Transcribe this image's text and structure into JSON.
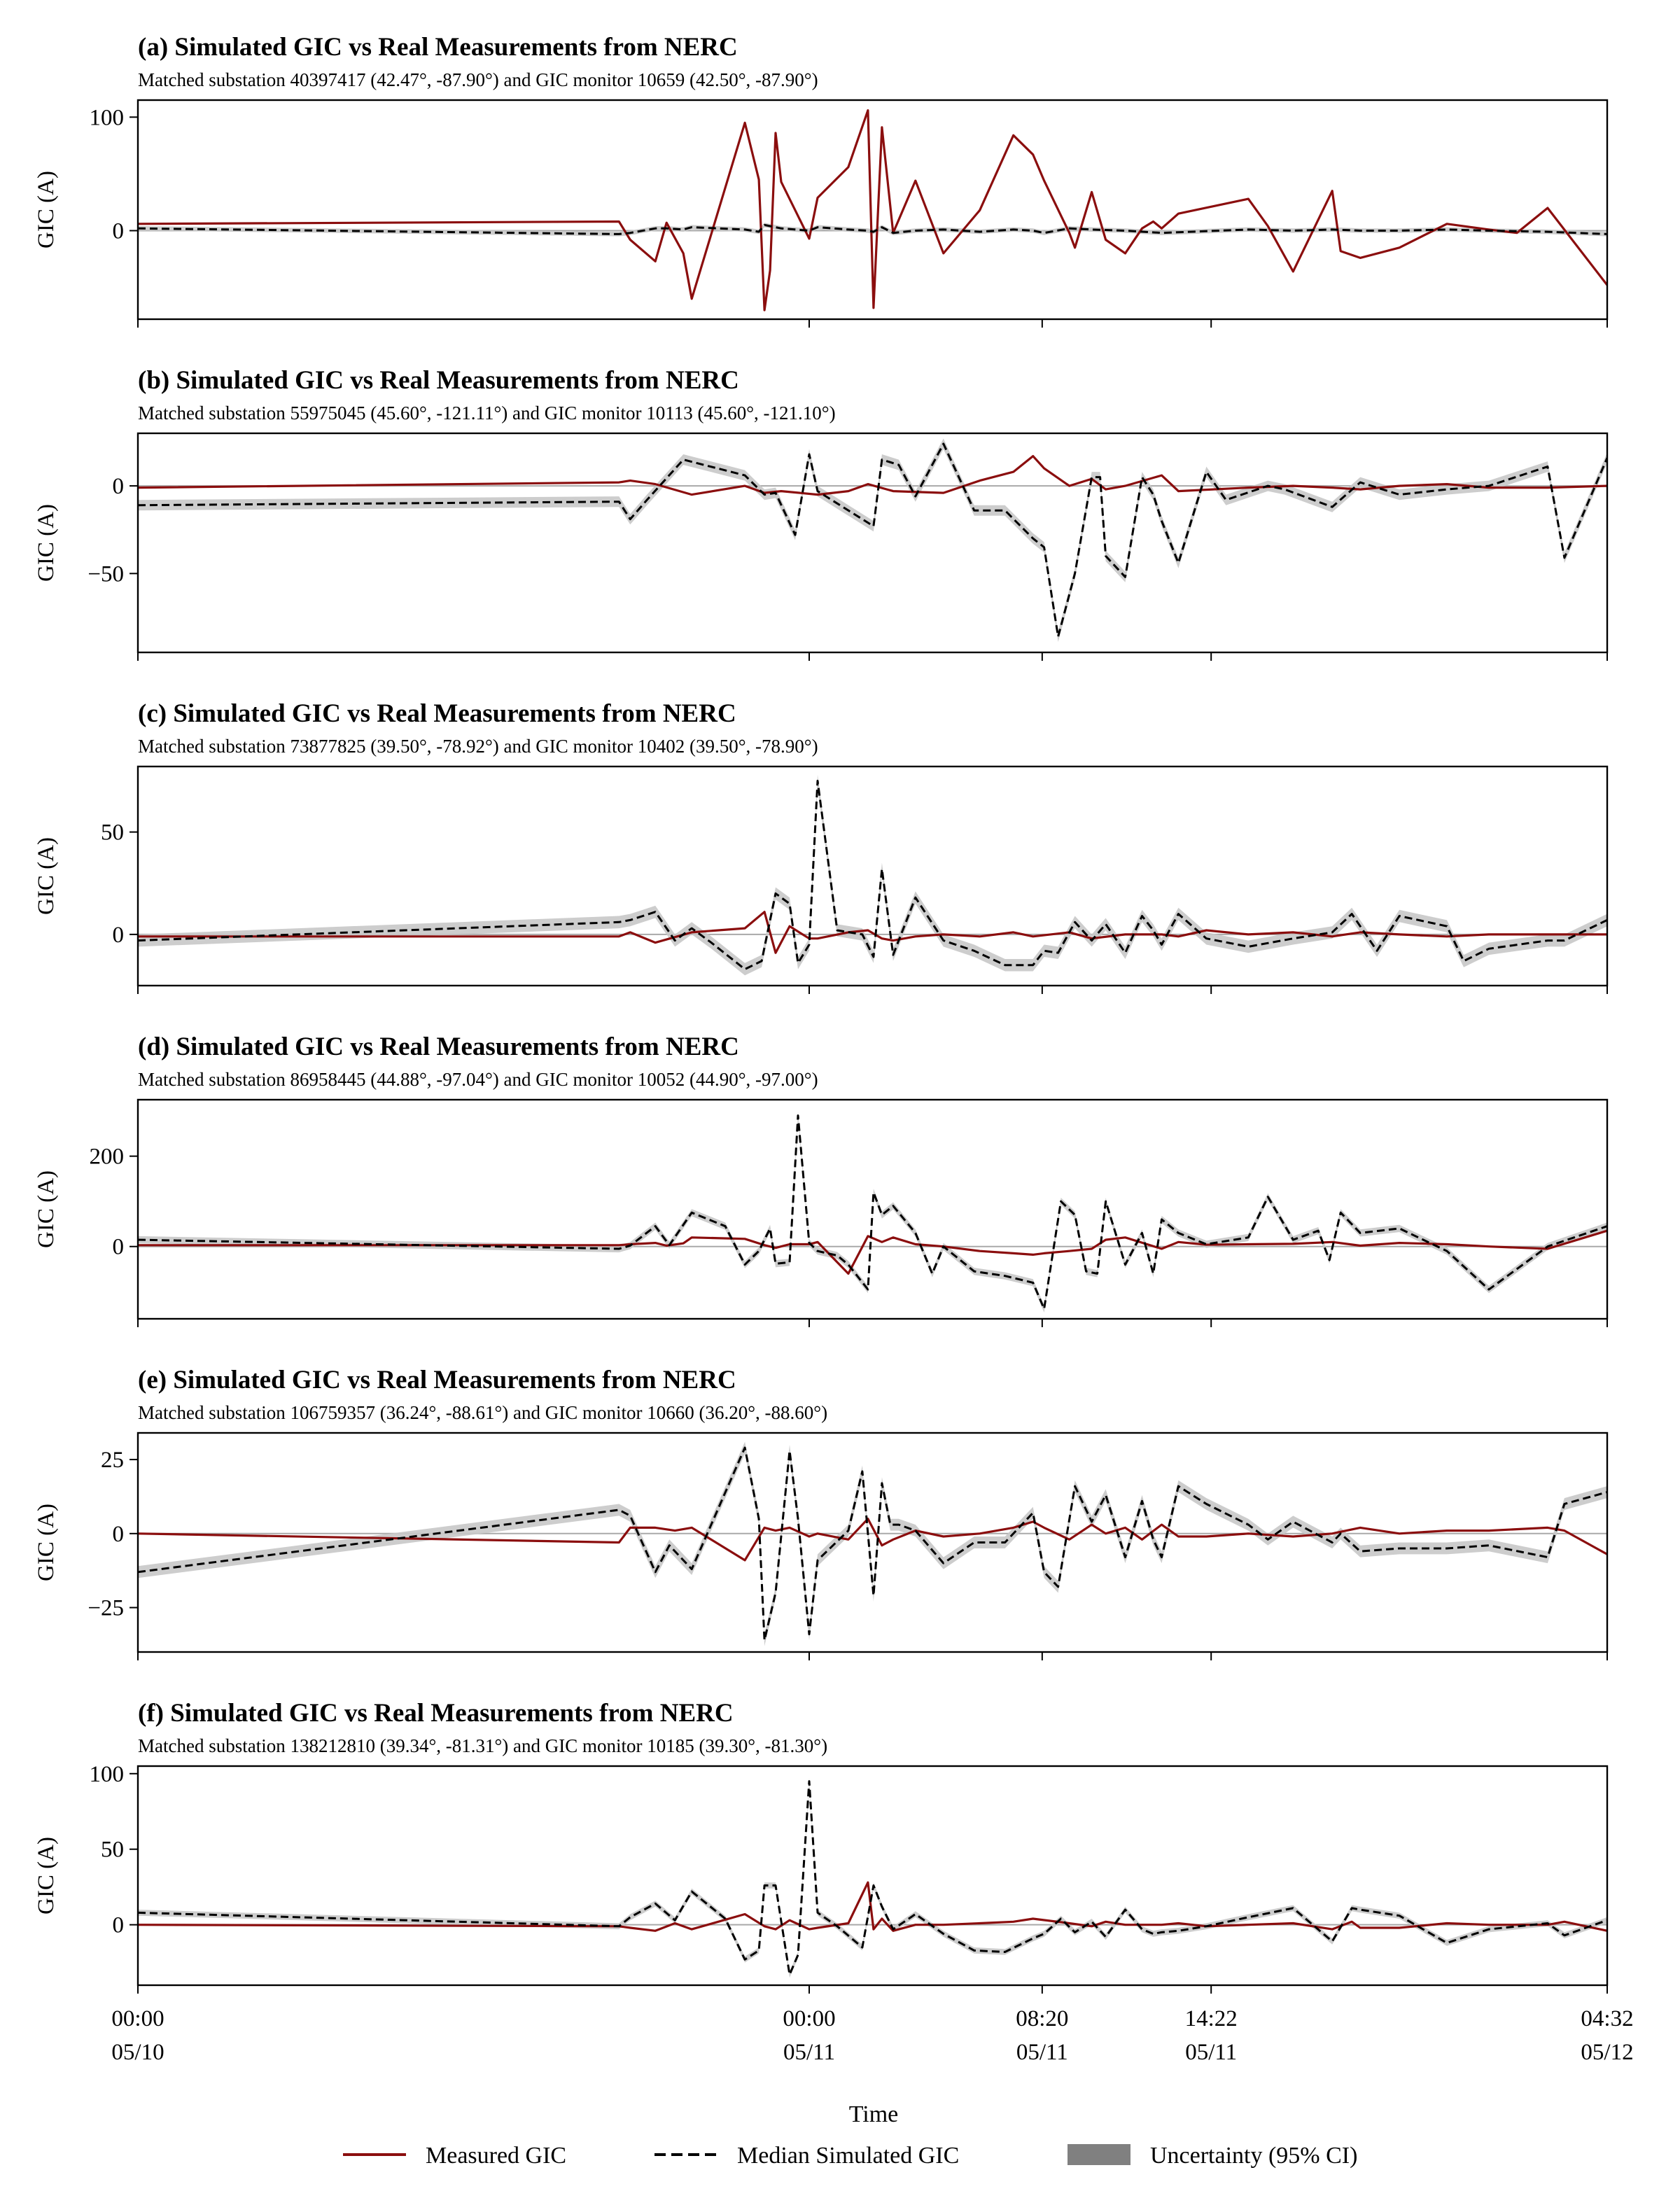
{
  "figure": {
    "x_axis_label": "Time",
    "x_ticks": [
      {
        "t": 0,
        "line1": "00:00",
        "line2": "05/10"
      },
      {
        "t": 24,
        "line1": "00:00",
        "line2": "05/11"
      },
      {
        "t": 32.33,
        "line1": "08:20",
        "line2": "05/11"
      },
      {
        "t": 38.37,
        "line1": "14:22",
        "line2": "05/11"
      },
      {
        "t": 52.53,
        "line1": "04:32",
        "line2": "05/12"
      }
    ],
    "legend": [
      {
        "label": "Measured GIC",
        "style": "solid",
        "color": "#8b0e0e"
      },
      {
        "label": "Median Simulated GIC",
        "style": "dashed",
        "color": "#000000"
      },
      {
        "label": "Uncertainty (95% CI)",
        "style": "patch",
        "color": "#808080"
      }
    ],
    "colors": {
      "measured": "#8b0e0e",
      "simulated": "#000000",
      "band": "#c8c8c8",
      "zero_line": "#a9a9a9"
    }
  },
  "chart_data": [
    {
      "type": "line",
      "title": "(a) Simulated GIC vs Real Measurements from NERC",
      "subtitle": "Matched substation 40397417 (42.47°, -87.90°) and GIC monitor 10659 (42.50°, -87.90°)",
      "ylabel": "GIC (A)",
      "ylim": [
        -78,
        115
      ],
      "yticks": [
        0,
        100
      ],
      "measured": {
        "x": [
          0,
          17.2,
          17.6,
          18.5,
          18.9,
          19.5,
          19.8,
          21.7,
          22.2,
          22.4,
          22.6,
          22.8,
          23.0,
          24.0,
          24.3,
          25.4,
          26.1,
          26.3,
          26.6,
          27.0,
          27.8,
          28.8,
          30.1,
          31.3,
          32.0,
          32.4,
          33.3,
          33.5,
          34.1,
          34.6,
          35.3,
          35.9,
          36.3,
          36.6,
          37.2,
          39.7,
          40.4,
          41.3,
          42.7,
          43.0,
          43.7,
          45.1,
          46.8,
          48.3,
          49.3,
          50.4,
          52.53
        ],
        "y": [
          6,
          8,
          -8,
          -27,
          7,
          -20,
          -60,
          95,
          45,
          -70,
          -35,
          86,
          43,
          -7,
          29,
          56,
          106,
          -68,
          91,
          -2,
          44,
          -20,
          18,
          84,
          67,
          44,
          -2,
          -15,
          34,
          -8,
          -20,
          2,
          8,
          2,
          15,
          28,
          4,
          -36,
          35,
          -18,
          -24,
          -15,
          6,
          1,
          -2,
          20,
          -48
        ]
      },
      "simulated": {
        "x": [
          0,
          17.2,
          17.6,
          18.5,
          18.9,
          19.5,
          19.8,
          21.7,
          22.2,
          22.4,
          22.6,
          23.0,
          24.0,
          24.3,
          25.4,
          26.1,
          26.3,
          26.6,
          27.0,
          27.8,
          28.8,
          30.1,
          31.3,
          32.0,
          32.4,
          33.3,
          34.1,
          35.3,
          36.6,
          39.7,
          41.3,
          42.7,
          43.7,
          45.1,
          46.8,
          48.3,
          50.4,
          52.53
        ],
        "y": [
          2,
          -3,
          -2,
          2,
          2,
          1,
          3,
          1,
          -1,
          5,
          4,
          2,
          0,
          3,
          1,
          0,
          -1,
          3,
          -2,
          0,
          1,
          -1,
          1,
          0,
          -2,
          2,
          1,
          0,
          -2,
          1,
          0,
          1,
          0,
          0,
          1,
          0,
          -1,
          -3
        ],
        "band": 2
      },
      "zero_line": true
    },
    {
      "type": "line",
      "title": "(b) Simulated GIC vs Real Measurements from NERC",
      "subtitle": "Matched substation 55975045 (45.60°, -121.11°) and GIC monitor 10113 (45.60°, -121.10°)",
      "ylabel": "GIC (A)",
      "ylim": [
        -95,
        30
      ],
      "yticks": [
        -50,
        0
      ],
      "measured": {
        "x": [
          0,
          17.2,
          17.6,
          18.5,
          19.8,
          21.7,
          22.4,
          23.0,
          24.3,
          25.4,
          26.1,
          27.0,
          28.8,
          30.1,
          31.3,
          32.0,
          32.4,
          33.3,
          34.1,
          34.6,
          35.3,
          36.6,
          37.2,
          39.7,
          41.3,
          42.7,
          43.7,
          45.1,
          46.8,
          48.3,
          50.4,
          52.53
        ],
        "y": [
          -1,
          2,
          3,
          1,
          -5,
          0,
          -4,
          -3,
          -5,
          -3,
          1,
          -3,
          -4,
          3,
          8,
          17,
          10,
          0,
          4,
          -2,
          0,
          6,
          -3,
          -1,
          0,
          -1,
          -2,
          0,
          1,
          -1,
          -1,
          0
        ]
      },
      "simulated": {
        "x": [
          0,
          17.2,
          17.6,
          18.2,
          19.5,
          21.7,
          22.4,
          22.8,
          23.5,
          24.0,
          24.3,
          25.0,
          26.3,
          26.6,
          27.2,
          27.8,
          28.8,
          29.9,
          31.0,
          32.0,
          32.4,
          32.9,
          33.5,
          34.1,
          34.4,
          34.6,
          35.3,
          35.9,
          36.3,
          36.6,
          37.2,
          38.2,
          38.9,
          40.4,
          41.0,
          42.7,
          43.7,
          45.1,
          46.8,
          48.3,
          50.4,
          51.0,
          52.53
        ],
        "y": [
          -11,
          -9,
          -19,
          -8,
          15,
          6,
          -5,
          -4,
          -28,
          18,
          -3,
          -10,
          -23,
          15,
          12,
          -6,
          24,
          -14,
          -14,
          -30,
          -35,
          -86,
          -50,
          5,
          5,
          -40,
          -52,
          5,
          -5,
          -20,
          -44,
          8,
          -8,
          0,
          -2,
          -12,
          2,
          -5,
          -2,
          0,
          11,
          -41,
          16
        ],
        "band": 3
      },
      "zero_line": true
    },
    {
      "type": "line",
      "title": "(c) Simulated GIC vs Real Measurements from NERC",
      "subtitle": "Matched substation 73877825 (39.50°, -78.92°) and GIC monitor 10402 (39.50°, -78.90°)",
      "ylabel": "GIC (A)",
      "ylim": [
        -25,
        82
      ],
      "yticks": [
        0,
        50
      ],
      "measured": {
        "x": [
          0,
          17.2,
          17.6,
          18.5,
          19.8,
          21.7,
          22.4,
          22.8,
          23.3,
          24.0,
          24.3,
          25.4,
          26.1,
          26.6,
          27.0,
          27.8,
          28.8,
          30.1,
          31.3,
          32.0,
          33.3,
          34.1,
          35.3,
          36.6,
          37.2,
          38.2,
          39.7,
          41.3,
          42.7,
          43.7,
          45.1,
          46.8,
          48.3,
          50.4,
          52.53
        ],
        "y": [
          -1,
          -1,
          1,
          -4,
          1,
          3,
          11,
          -9,
          4,
          -2,
          -2,
          1,
          2,
          -2,
          -3,
          -1,
          0,
          -1,
          1,
          -1,
          1,
          -2,
          0,
          0,
          -1,
          2,
          0,
          1,
          -1,
          1,
          0,
          -1,
          0,
          0,
          0
        ]
      },
      "simulated": {
        "x": [
          0,
          17.2,
          17.6,
          18.5,
          19.2,
          19.8,
          20.5,
          21.7,
          22.3,
          22.8,
          23.3,
          23.6,
          24.0,
          24.3,
          25.0,
          25.9,
          26.3,
          26.6,
          27.0,
          27.8,
          28.8,
          29.9,
          31.0,
          32.0,
          32.4,
          32.9,
          33.5,
          34.1,
          34.6,
          35.3,
          35.9,
          36.3,
          36.6,
          37.2,
          38.2,
          39.7,
          41.3,
          42.7,
          43.4,
          44.3,
          45.1,
          46.8,
          47.4,
          48.3,
          50.4,
          51.0,
          52.53
        ],
        "y": [
          -3,
          6,
          7,
          11,
          -3,
          3,
          -4,
          -17,
          -13,
          20,
          15,
          -14,
          -5,
          75,
          2,
          0,
          -11,
          32,
          -10,
          18,
          -3,
          -8,
          -15,
          -15,
          -8,
          -9,
          6,
          -3,
          5,
          -9,
          9,
          2,
          -5,
          10,
          -2,
          -6,
          -2,
          1,
          10,
          -8,
          9,
          4,
          -13,
          -7,
          -3,
          -3,
          7
        ],
        "band": 3
      },
      "zero_line": true
    },
    {
      "type": "line",
      "title": "(d) Simulated GIC vs Real Measurements from NERC",
      "subtitle": "Matched substation 86958445 (44.88°, -97.04°) and GIC monitor 10052 (44.90°, -97.00°)",
      "ylabel": "GIC (A)",
      "ylim": [
        -160,
        325
      ],
      "yticks": [
        0,
        200
      ],
      "measured": {
        "x": [
          0,
          17.2,
          17.6,
          18.5,
          18.9,
          19.5,
          19.8,
          21.7,
          22.4,
          22.8,
          23.3,
          24.0,
          24.3,
          25.4,
          26.1,
          26.6,
          27.0,
          27.8,
          28.8,
          30.1,
          31.3,
          32.0,
          32.4,
          33.3,
          34.1,
          34.6,
          35.3,
          36.6,
          37.2,
          38.2,
          39.7,
          41.3,
          42.7,
          43.7,
          45.1,
          46.8,
          48.3,
          50.4,
          52.53
        ],
        "y": [
          3,
          3,
          5,
          8,
          2,
          7,
          20,
          17,
          3,
          -3,
          5,
          5,
          10,
          -60,
          23,
          10,
          20,
          5,
          0,
          -10,
          -15,
          -18,
          -15,
          -10,
          -5,
          15,
          20,
          -5,
          10,
          4,
          5,
          6,
          10,
          2,
          8,
          5,
          0,
          -5,
          35
        ]
      },
      "simulated": {
        "x": [
          0,
          17.2,
          17.6,
          18.5,
          19.0,
          19.8,
          21.0,
          21.7,
          22.2,
          22.6,
          22.8,
          23.3,
          23.6,
          24.0,
          24.3,
          25.0,
          25.4,
          26.1,
          26.3,
          26.6,
          27.0,
          27.8,
          28.4,
          28.8,
          29.9,
          31.0,
          32.0,
          32.4,
          33.0,
          33.5,
          33.9,
          34.3,
          34.6,
          35.3,
          35.9,
          36.3,
          36.6,
          37.2,
          38.2,
          39.7,
          40.4,
          41.3,
          42.2,
          42.6,
          43.0,
          43.7,
          45.1,
          46.8,
          48.3,
          50.4,
          52.53
        ],
        "y": [
          15,
          -5,
          2,
          45,
          3,
          75,
          45,
          -40,
          -10,
          40,
          -38,
          -35,
          290,
          8,
          -10,
          -20,
          -40,
          -95,
          120,
          70,
          90,
          30,
          -60,
          0,
          -55,
          -65,
          -80,
          -138,
          100,
          70,
          -55,
          -60,
          100,
          -40,
          30,
          -60,
          60,
          30,
          5,
          20,
          110,
          15,
          35,
          -30,
          75,
          30,
          40,
          -10,
          -95,
          0,
          45
        ],
        "band": 8
      },
      "zero_line": true
    },
    {
      "type": "line",
      "title": "(e) Simulated GIC vs Real Measurements from NERC",
      "subtitle": "Matched substation 106759357 (36.24°, -88.61°) and GIC monitor 10660 (36.20°, -88.60°)",
      "ylabel": "GIC (A)",
      "ylim": [
        -40,
        34
      ],
      "yticks": [
        -25,
        0,
        25
      ],
      "measured": {
        "x": [
          0,
          17.2,
          17.6,
          18.5,
          19.2,
          19.8,
          21.7,
          22.4,
          22.8,
          23.3,
          24.0,
          24.3,
          25.4,
          26.1,
          26.6,
          27.0,
          27.8,
          28.8,
          30.1,
          31.3,
          32.0,
          32.4,
          33.3,
          34.1,
          34.6,
          35.3,
          35.9,
          36.6,
          37.2,
          38.2,
          39.7,
          41.3,
          42.7,
          43.7,
          45.1,
          46.8,
          48.3,
          50.4,
          51.0,
          52.53
        ],
        "y": [
          0,
          -3,
          2,
          2,
          1,
          2,
          -9,
          2,
          1,
          2,
          -1,
          0,
          -2,
          5,
          -4,
          -2,
          1,
          -1,
          0,
          2,
          4,
          2,
          -2,
          3,
          0,
          2,
          -2,
          3,
          -1,
          -1,
          0,
          -1,
          0,
          2,
          0,
          1,
          1,
          2,
          1,
          -7
        ]
      },
      "simulated": {
        "x": [
          0,
          17.2,
          17.6,
          18.5,
          19.0,
          19.8,
          21.7,
          22.2,
          22.4,
          22.8,
          23.3,
          23.6,
          24.0,
          24.3,
          25.4,
          25.9,
          26.3,
          26.6,
          26.9,
          27.2,
          27.8,
          28.8,
          29.9,
          31.0,
          32.0,
          32.4,
          32.9,
          33.5,
          34.1,
          34.6,
          35.3,
          35.9,
          36.3,
          36.6,
          37.2,
          38.2,
          39.7,
          40.4,
          41.3,
          42.7,
          43.0,
          43.7,
          45.1,
          46.8,
          48.3,
          50.4,
          51.0,
          52.53
        ],
        "y": [
          -13,
          8,
          6,
          -13,
          -4,
          -12,
          29,
          5,
          -36,
          -20,
          28,
          5,
          -34,
          -9,
          1,
          21,
          -21,
          17,
          3,
          3,
          1,
          -10,
          -3,
          -3,
          7,
          -13,
          -18,
          16,
          4,
          13,
          -8,
          11,
          -2,
          -8,
          16,
          10,
          3,
          -2,
          4,
          -3,
          0,
          -6,
          -5,
          -5,
          -4,
          -8,
          10,
          14
        ],
        "band": 2
      },
      "zero_line": true
    },
    {
      "type": "line",
      "title": "(f) Simulated GIC vs Real Measurements from NERC",
      "subtitle": "Matched substation 138212810 (39.34°, -81.31°) and GIC monitor 10185 (39.30°, -81.30°)",
      "ylabel": "GIC (A)",
      "ylim": [
        -40,
        105
      ],
      "yticks": [
        0,
        50,
        100
      ],
      "measured": {
        "x": [
          0,
          17.2,
          17.6,
          18.5,
          19.2,
          19.8,
          21.7,
          22.4,
          22.8,
          23.3,
          24.0,
          24.3,
          25.4,
          26.1,
          26.3,
          26.6,
          27.0,
          27.8,
          28.8,
          30.1,
          31.3,
          32.0,
          33.3,
          34.1,
          34.6,
          35.3,
          36.6,
          37.2,
          38.2,
          39.7,
          41.3,
          42.7,
          43.4,
          43.7,
          45.1,
          46.8,
          48.3,
          50.4,
          51.0,
          52.53
        ],
        "y": [
          0,
          -1,
          -2,
          -4,
          1,
          -3,
          7,
          -1,
          -3,
          3,
          -3,
          -2,
          1,
          28,
          -3,
          4,
          -4,
          0,
          0,
          1,
          2,
          4,
          1,
          -1,
          2,
          0,
          0,
          1,
          -1,
          0,
          1,
          -3,
          2,
          -2,
          -2,
          1,
          0,
          0,
          2,
          -4
        ]
      },
      "simulated": {
        "x": [
          0,
          17.2,
          17.6,
          18.5,
          19.2,
          19.8,
          21.0,
          21.7,
          22.2,
          22.4,
          22.8,
          23.3,
          23.6,
          24.0,
          24.3,
          25.0,
          25.9,
          26.3,
          26.6,
          27.0,
          27.8,
          28.8,
          29.9,
          31.0,
          32.0,
          32.4,
          33.0,
          33.5,
          34.1,
          34.6,
          35.3,
          35.9,
          36.3,
          36.6,
          37.2,
          38.2,
          39.7,
          41.3,
          42.7,
          43.4,
          43.7,
          45.1,
          46.8,
          48.3,
          50.4,
          51.0,
          52.53
        ],
        "y": [
          8,
          -1,
          5,
          14,
          3,
          22,
          4,
          -23,
          -17,
          26,
          26,
          -33,
          -20,
          95,
          8,
          -1,
          -15,
          26,
          12,
          -3,
          7,
          -6,
          -17,
          -18,
          -9,
          -6,
          4,
          -5,
          2,
          -8,
          10,
          -3,
          -6,
          -5,
          -4,
          -1,
          5,
          11,
          -11,
          11,
          10,
          6,
          -12,
          -3,
          1,
          -7,
          3
        ],
        "band": 2
      },
      "zero_line": true
    }
  ]
}
